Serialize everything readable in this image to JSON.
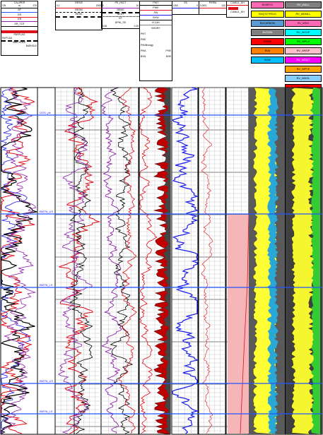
{
  "header": {
    "caliper": {
      "title": "CALIPER",
      "scale_lo": "125",
      "scale_hi": "375",
      "unit": "in"
    },
    "sp": {
      "title": "SP"
    },
    "gr": {
      "title": "GR"
    },
    "gr_tot": {
      "title": "GR_TOT"
    },
    "gr_extra": {
      "title": "GR"
    },
    "payflag": {
      "title": "PAYFLAG"
    },
    "payflag2": {
      "title": "PAYFLAG"
    },
    "badhole": {
      "title": "BAD HOLE"
    },
    "badhole2": {
      "title": "BADHOLE"
    },
    "resist": {
      "title": "RESIS",
      "scale_lo": "0.2",
      "scale_hi": "2000"
    },
    "resm": {
      "title": "RESM"
    },
    "resd": {
      "title": "RESD"
    },
    "pe_fact": {
      "title": "PE_FACT",
      "scale_lo": "0",
      "scale_hi": "10"
    },
    "dens": {
      "title": "DENS"
    },
    "neut": {
      "title": "NEUT"
    },
    "dt": {
      "title": "DT"
    },
    "dphi_ss": {
      "title": "DPHI_SS",
      "scale_lo": "0.45",
      "scale_hi": "-0.15"
    },
    "phit": {
      "title": "PHIT"
    },
    "phie": {
      "title": "PHIE"
    },
    "sw": {
      "title": "SW"
    },
    "bvw": {
      "title": "BVW"
    },
    "vclay": {
      "title": "VCLAY"
    },
    "bvdry": {
      "title": "BVDRY"
    },
    "phit2": {
      "title": "PHIT"
    },
    "phie2": {
      "title": "PHIE"
    },
    "ss": {
      "title": "SS",
      "scale_lo": "1000",
      "scale_hi": "0"
    },
    "perm": {
      "title": "PERM",
      "scale_lo": "0.0001",
      "scale_hi": "100"
    },
    "cumul_kh": {
      "title": "CUMUL_KH"
    },
    "cumul_kh2": {
      "title": "CUMUL_KH"
    },
    "phi_lith": {
      "title": "PHI/lithology"
    },
    "phia": {
      "title": "PHIA"
    },
    "phie3": {
      "title": "PHIE"
    },
    "bvw2": {
      "title": "BVW"
    }
  },
  "lith_legend": [
    {
      "label": "BVDRYC",
      "color": "#ff69b4"
    },
    {
      "label": "BVQTZ+FELD",
      "color": "#ffff00"
    },
    {
      "label": "BVCARBON",
      "color": "#5b9bd5"
    },
    {
      "label": "BVCBW",
      "color": "#808080"
    },
    {
      "label": "BVWA",
      "color": "#ff0000"
    },
    {
      "label": "BVA",
      "color": "#ff7f00"
    },
    {
      "label": "BVW",
      "color": "#00bfff"
    }
  ],
  "mineral_legend": [
    {
      "label": "RV_WALL",
      "color": "#808080"
    },
    {
      "label": "RV_WDMLL",
      "color": "#ffff00"
    },
    {
      "label": "RV_WDG",
      "color": "#ff69b4"
    },
    {
      "label": "RV_WCHP",
      "color": "#00ffff"
    },
    {
      "label": "RV_WPLA",
      "color": "#00ff00"
    },
    {
      "label": "RV_WKSP",
      "color": "#ffc0cb"
    },
    {
      "label": "RV_WDQT",
      "color": "#ff00ff"
    },
    {
      "label": "RV_WPYE",
      "color": "#ffa500"
    },
    {
      "label": "RV_WDOL",
      "color": "#87cefa"
    },
    {
      "label": "RV_WSID",
      "color": "#ff0000"
    },
    {
      "label": "RV_WAPA",
      "color": "#0000ff"
    },
    {
      "label": "RV_WAPH",
      "color": "#ff1493"
    },
    {
      "label": "RV_WCMAT",
      "color": "#000000"
    }
  ],
  "tops": [
    {
      "label": "DOG_pb",
      "depth": 163
    },
    {
      "label": "BMTN_US",
      "depth": 303
    },
    {
      "label": "BMTN_LS",
      "depth": 407
    },
    {
      "label": "BMTN_US",
      "depth": 543
    },
    {
      "label": "BMTN_LS",
      "depth": 586
    }
  ],
  "colors": {
    "top_line": "#2255ff",
    "red": "#e0101a",
    "blue": "#1a1aee",
    "purple": "#8a1ca8",
    "pink_zone": "#f4b6b6"
  }
}
